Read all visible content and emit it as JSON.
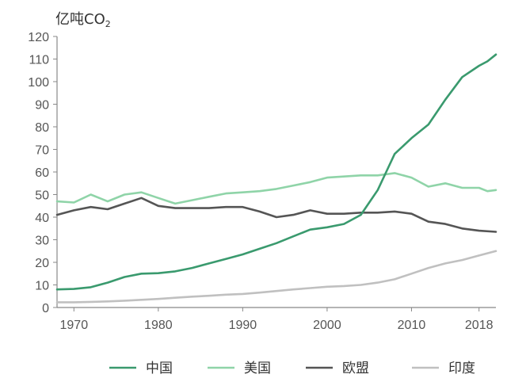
{
  "chart_data": {
    "type": "line",
    "title": "",
    "ylabel": "亿吨CO₂",
    "ylabel_main": "亿吨CO",
    "ylabel_sub": "2",
    "xlabel": "",
    "xlim": [
      1968,
      2020
    ],
    "ylim": [
      0,
      120
    ],
    "yticks": [
      0,
      10,
      20,
      30,
      40,
      50,
      60,
      70,
      80,
      90,
      100,
      110,
      120
    ],
    "xticks": [
      1970,
      1980,
      1990,
      2000,
      2010,
      2018
    ],
    "grid": false,
    "legend_position": "bottom",
    "series": [
      {
        "name": "中国",
        "color": "#3a9a6e",
        "points": [
          [
            1968,
            8
          ],
          [
            1970,
            8.2
          ],
          [
            1972,
            9
          ],
          [
            1974,
            11
          ],
          [
            1976,
            13.5
          ],
          [
            1978,
            15
          ],
          [
            1980,
            15.2
          ],
          [
            1982,
            16
          ],
          [
            1984,
            17.5
          ],
          [
            1986,
            19.5
          ],
          [
            1988,
            21.5
          ],
          [
            1990,
            23.5
          ],
          [
            1992,
            26
          ],
          [
            1994,
            28.5
          ],
          [
            1996,
            31.5
          ],
          [
            1998,
            34.5
          ],
          [
            2000,
            35.5
          ],
          [
            2002,
            37
          ],
          [
            2004,
            41
          ],
          [
            2006,
            52
          ],
          [
            2007,
            60
          ],
          [
            2008,
            68
          ],
          [
            2010,
            75
          ],
          [
            2012,
            81
          ],
          [
            2014,
            92
          ],
          [
            2016,
            102
          ],
          [
            2018,
            107
          ],
          [
            2019,
            109
          ],
          [
            2020,
            112
          ]
        ]
      },
      {
        "name": "美国",
        "color": "#8fd4a8",
        "points": [
          [
            1968,
            47
          ],
          [
            1970,
            46.5
          ],
          [
            1972,
            50
          ],
          [
            1974,
            47
          ],
          [
            1976,
            50
          ],
          [
            1978,
            51
          ],
          [
            1980,
            48.5
          ],
          [
            1982,
            46
          ],
          [
            1984,
            47.5
          ],
          [
            1986,
            49
          ],
          [
            1988,
            50.5
          ],
          [
            1990,
            51
          ],
          [
            1992,
            51.5
          ],
          [
            1994,
            52.5
          ],
          [
            1996,
            54
          ],
          [
            1998,
            55.5
          ],
          [
            2000,
            57.5
          ],
          [
            2002,
            58
          ],
          [
            2004,
            58.5
          ],
          [
            2006,
            58.5
          ],
          [
            2008,
            59.5
          ],
          [
            2010,
            57.5
          ],
          [
            2012,
            53.5
          ],
          [
            2014,
            55
          ],
          [
            2016,
            53
          ],
          [
            2018,
            53
          ],
          [
            2019,
            51.5
          ],
          [
            2020,
            52
          ]
        ]
      },
      {
        "name": "欧盟",
        "color": "#555555",
        "points": [
          [
            1968,
            41
          ],
          [
            1970,
            43
          ],
          [
            1972,
            44.5
          ],
          [
            1974,
            43.5
          ],
          [
            1976,
            46
          ],
          [
            1978,
            48.5
          ],
          [
            1980,
            45
          ],
          [
            1982,
            44
          ],
          [
            1984,
            44
          ],
          [
            1986,
            44
          ],
          [
            1988,
            44.5
          ],
          [
            1990,
            44.5
          ],
          [
            1992,
            42.5
          ],
          [
            1994,
            40
          ],
          [
            1996,
            41
          ],
          [
            1998,
            43
          ],
          [
            2000,
            41.5
          ],
          [
            2002,
            41.5
          ],
          [
            2004,
            42
          ],
          [
            2006,
            42
          ],
          [
            2008,
            42.5
          ],
          [
            2010,
            41.5
          ],
          [
            2012,
            38
          ],
          [
            2014,
            37
          ],
          [
            2016,
            35
          ],
          [
            2018,
            34
          ],
          [
            2020,
            33.5
          ]
        ]
      },
      {
        "name": "印度",
        "color": "#c0c0c0",
        "points": [
          [
            1968,
            2.3
          ],
          [
            1970,
            2.3
          ],
          [
            1972,
            2.5
          ],
          [
            1974,
            2.7
          ],
          [
            1976,
            3
          ],
          [
            1978,
            3.4
          ],
          [
            1980,
            3.8
          ],
          [
            1982,
            4.3
          ],
          [
            1984,
            4.8
          ],
          [
            1986,
            5.2
          ],
          [
            1988,
            5.7
          ],
          [
            1990,
            6
          ],
          [
            1992,
            6.6
          ],
          [
            1994,
            7.3
          ],
          [
            1996,
            8
          ],
          [
            1998,
            8.6
          ],
          [
            2000,
            9.2
          ],
          [
            2002,
            9.5
          ],
          [
            2004,
            10
          ],
          [
            2006,
            11
          ],
          [
            2008,
            12.5
          ],
          [
            2010,
            15
          ],
          [
            2012,
            17.5
          ],
          [
            2014,
            19.5
          ],
          [
            2016,
            21
          ],
          [
            2018,
            23
          ],
          [
            2020,
            25
          ]
        ]
      }
    ]
  }
}
